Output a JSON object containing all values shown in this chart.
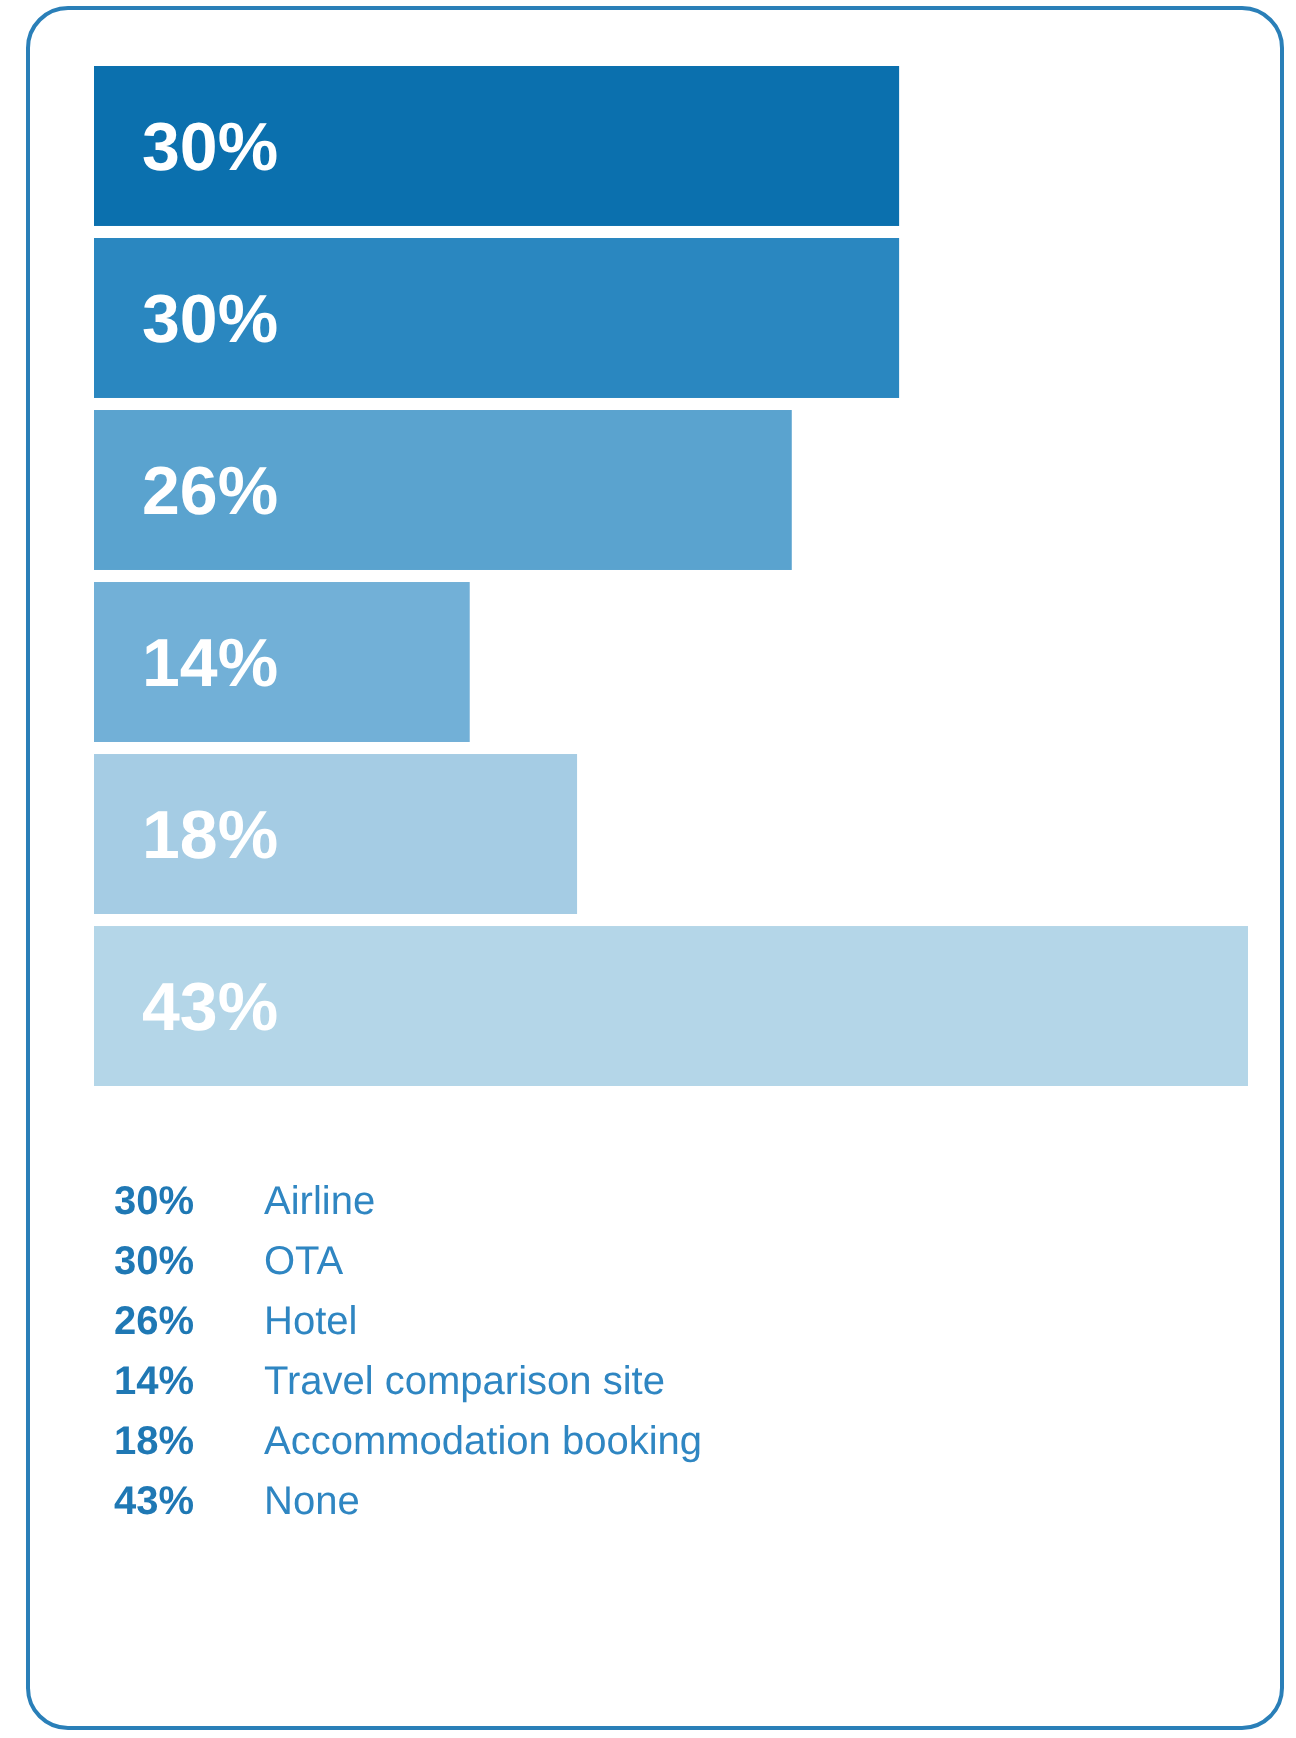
{
  "chart_data": {
    "type": "bar",
    "orientation": "horizontal",
    "categories": [
      null,
      null,
      null,
      null,
      null,
      null
    ],
    "annotations": [
      "Airline",
      "OTA",
      "Hotel",
      "Travel comparison site",
      "Accommodation booking",
      "None"
    ],
    "values": [
      30,
      30,
      26,
      14,
      18,
      43
    ],
    "value_labels": [
      "30%",
      "30%",
      "26%",
      "14%",
      "18%",
      "43%"
    ],
    "colors": [
      "#0b70ae",
      "#2a87c0",
      "#5aa3cf",
      "#72b0d7",
      "#a5cce4",
      "#b4d6e8"
    ]
  }
}
